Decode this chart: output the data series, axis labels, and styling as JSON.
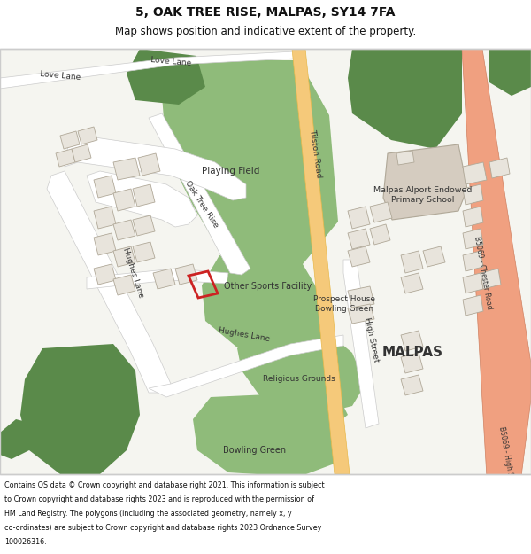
{
  "title_line1": "5, OAK TREE RISE, MALPAS, SY14 7FA",
  "title_line2": "Map shows position and indicative extent of the property.",
  "footer_lines": [
    "Contains OS data © Crown copyright and database right 2021. This information is subject",
    "to Crown copyright and database rights 2023 and is reproduced with the permission of",
    "HM Land Registry. The polygons (including the associated geometry, namely x, y",
    "co-ordinates) are subject to Crown copyright and database rights 2023 Ordnance Survey",
    "100026316."
  ],
  "bg_color": "#f5f5f0",
  "road_color": "#ffffff",
  "road_outline_color": "#cccccc",
  "main_road_color": "#f5c97a",
  "main_road_outline": "#e8b84b",
  "bypass_color": "#f0a080",
  "bypass_outline": "#d08060",
  "green_light": "#8fbb7a",
  "green_dark": "#5a8a4a",
  "building_color": "#e8e4dc",
  "building_outline": "#b0a898",
  "school_building_color": "#d5ccc0",
  "red_plot_color": "#cc2222",
  "text_color": "#333333",
  "map_border_color": "#cccccc"
}
